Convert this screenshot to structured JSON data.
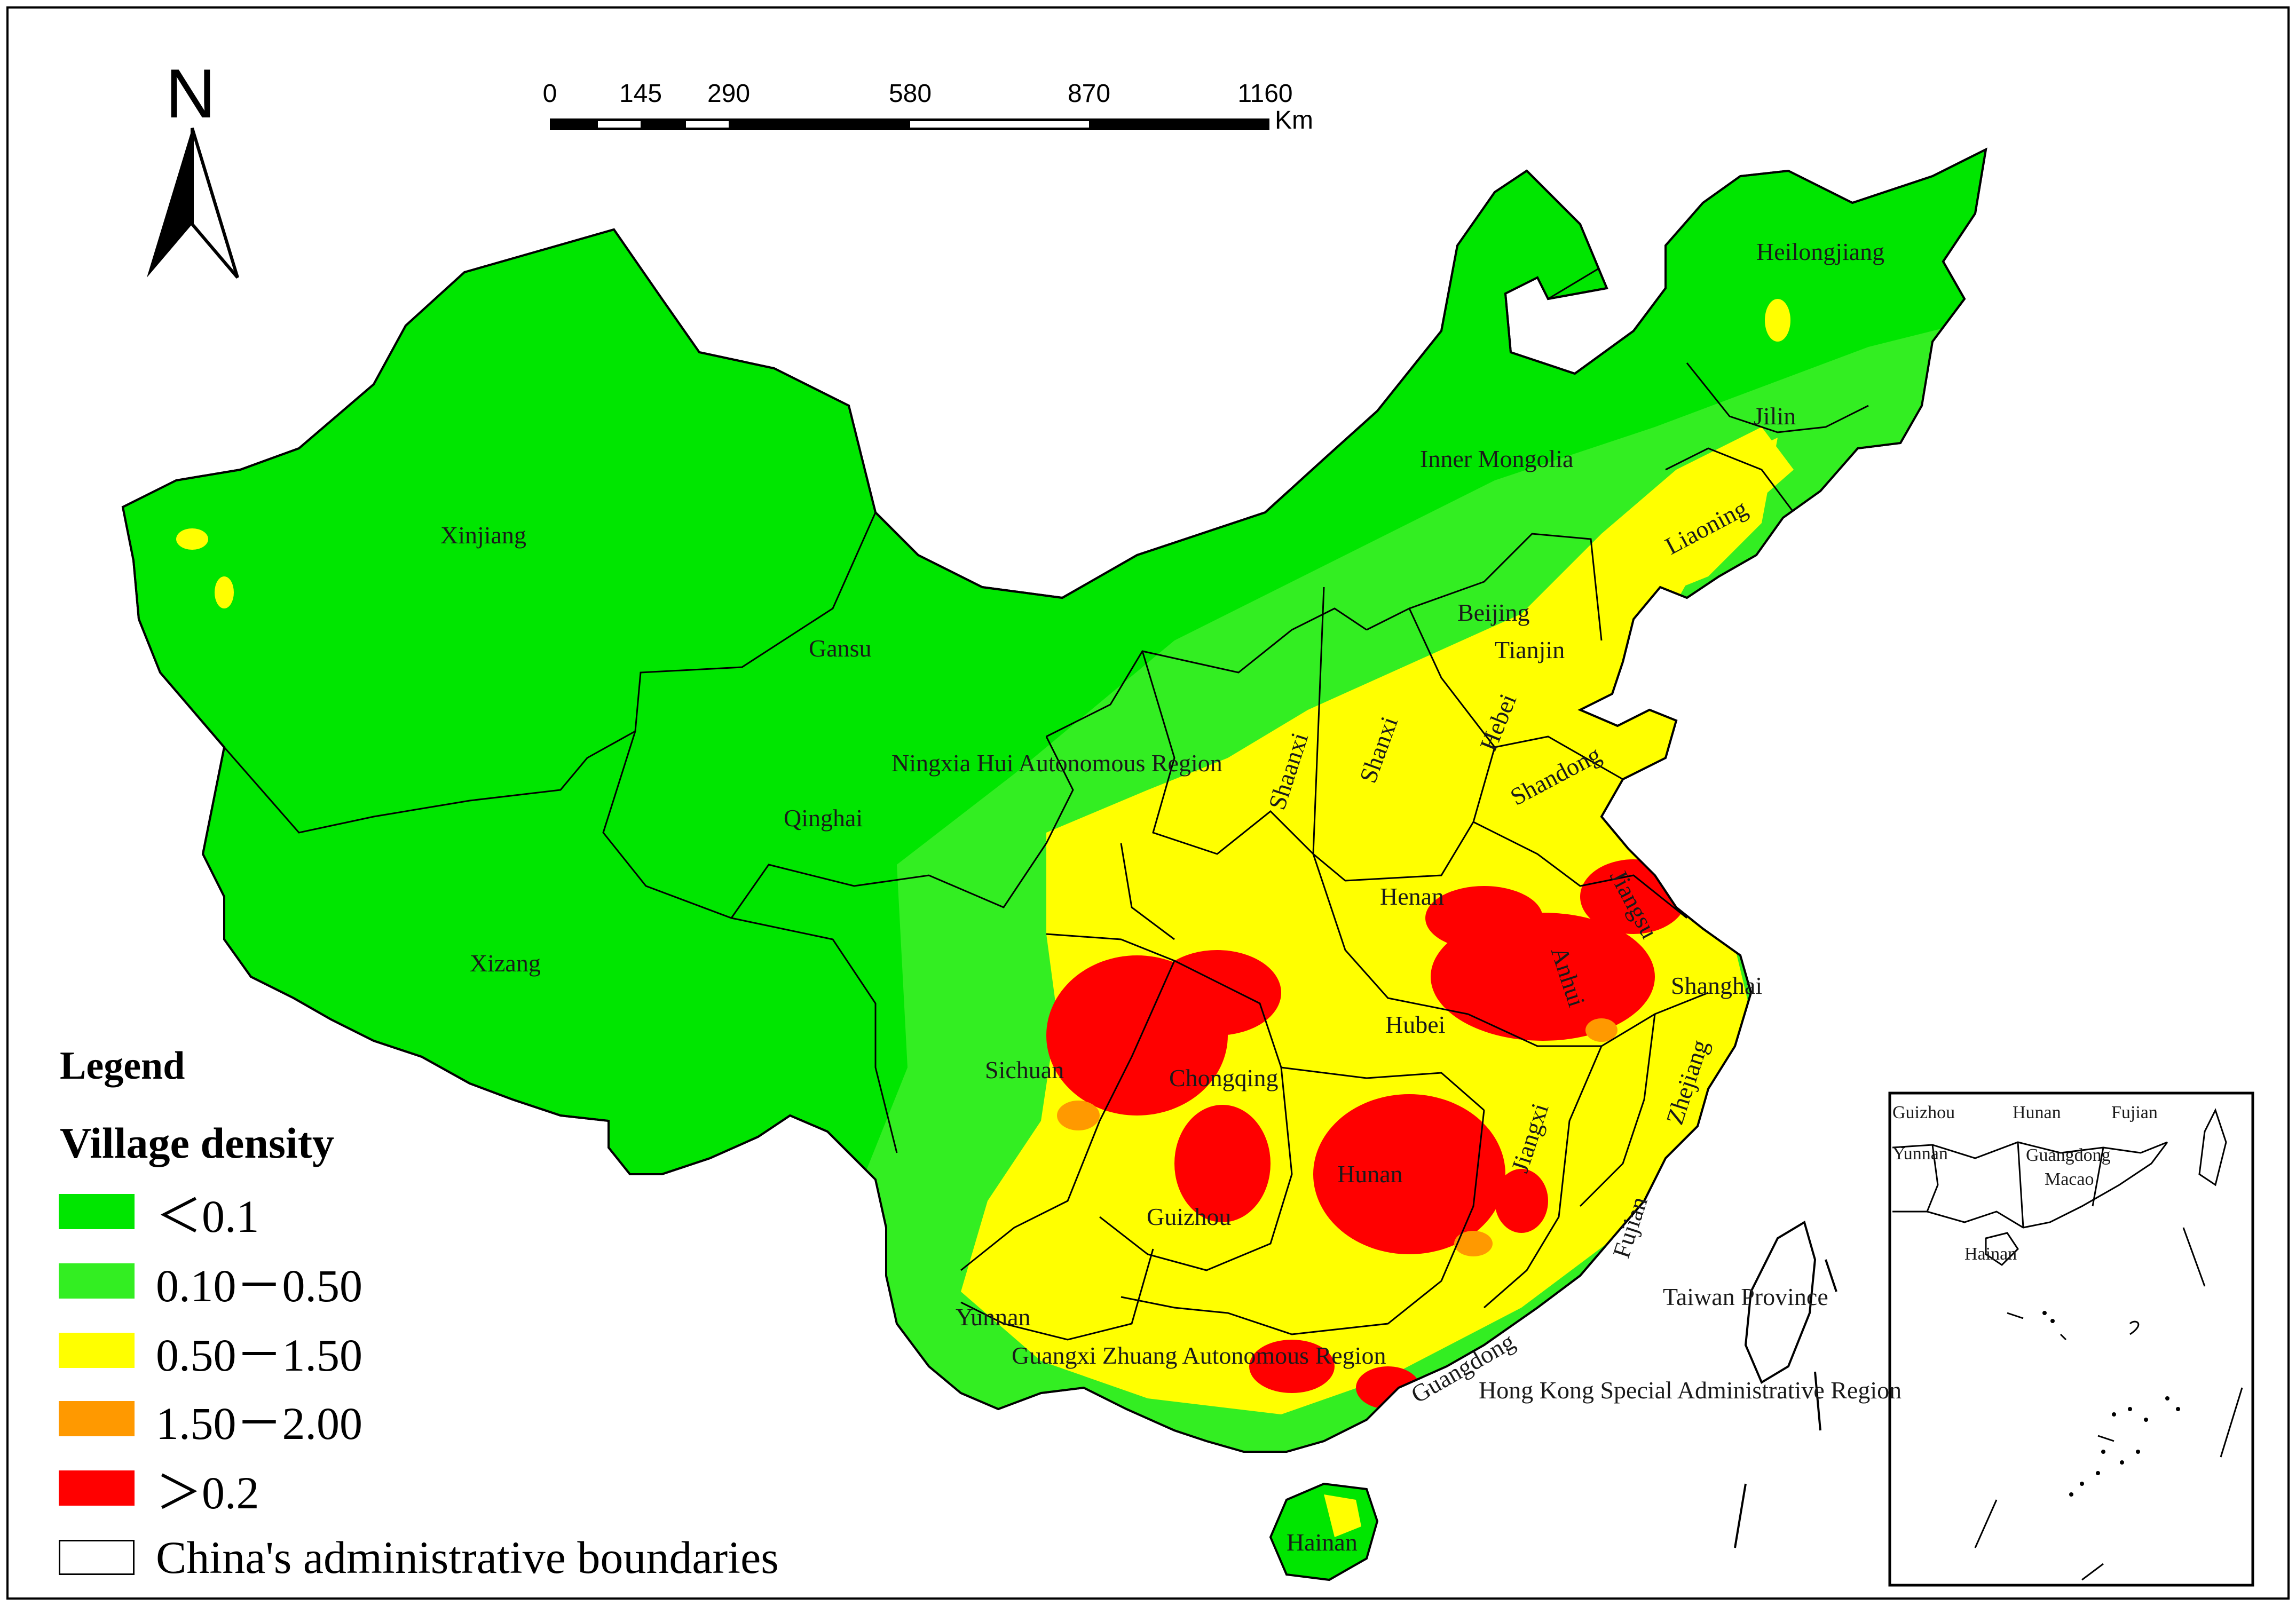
{
  "north_arrow": {
    "label": "N"
  },
  "scale_bar": {
    "ticks": [
      "0",
      "145",
      "290",
      "580",
      "870",
      "1160"
    ],
    "unit": "Km"
  },
  "legend": {
    "title": "Legend",
    "subtitle": "Village density",
    "items": [
      {
        "label": "＜0.1",
        "color": "#00e600"
      },
      {
        "label": "0.10－0.50",
        "color": "#33ee22"
      },
      {
        "label": "0.50－1.50",
        "color": "#ffff00"
      },
      {
        "label": "1.50－2.00",
        "color": "#ff9900"
      },
      {
        "label": "＞0.2",
        "color": "#ff0000"
      },
      {
        "label": "China's administrative boundaries",
        "color": "#ffffff"
      }
    ]
  },
  "map_labels": {
    "heilongjiang": "Heilongjiang",
    "jilin": "Jilin",
    "inner_mongolia": "Inner Mongolia",
    "liaoning": "Liaoning",
    "xinjiang": "Xinjiang",
    "gansu": "Gansu",
    "beijing": "Beijing",
    "tianjin": "Tianjin",
    "hebei": "Hebei",
    "shanxi": "Shanxi",
    "shaanxi": "Shaanxi",
    "ningxia": "Ningxia Hui Autonomous Region",
    "shandong": "Shandong",
    "qinghai": "Qinghai",
    "henan": "Henan",
    "jiangsu": "Jiangsu",
    "anhui": "Anhui",
    "shanghai": "Shanghai",
    "xizang": "Xizang",
    "hubei": "Hubei",
    "zhejiang": "Zhejiang",
    "sichuan": "Sichuan",
    "chongqing": "Chongqing",
    "jiangxi": "Jiangxi",
    "hunan": "Hunan",
    "guizhou": "Guizhou",
    "fujian": "Fujian",
    "taiwan": "Taiwan Province",
    "yunnan": "Yunnan",
    "guangxi": "Guangxi Zhuang Autonomous Region",
    "guangdong": "Guangdong",
    "hong_kong": "Hong Kong Special Administrative Region",
    "hainan": "Hainan"
  },
  "inset_labels": {
    "guizhou": "Guizhou",
    "hunan": "Hunan",
    "fujian": "Fujian",
    "yunnan": "Yunnan",
    "guangdong": "Guangdong",
    "macao": "Macao",
    "hainan": "Hainan"
  }
}
